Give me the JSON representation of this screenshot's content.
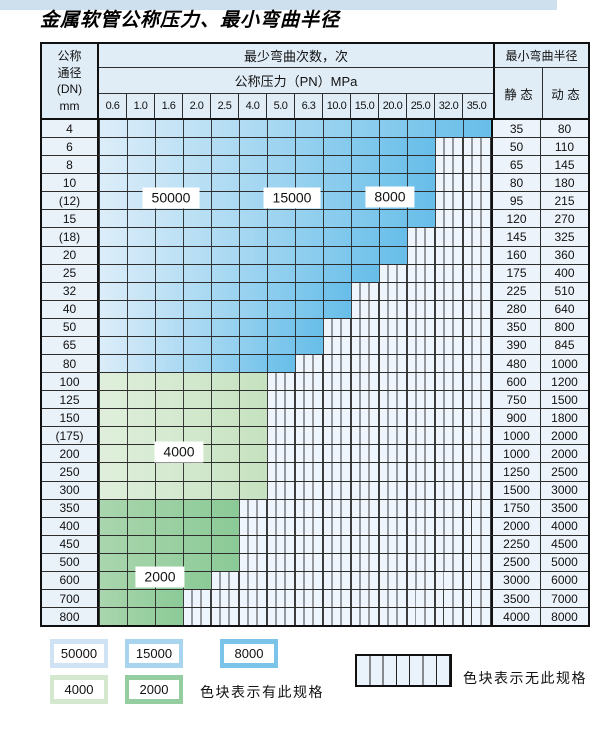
{
  "title": "金属软管公称压力、最小弯曲半径",
  "table": {
    "header": {
      "dn": [
        "公称",
        "通径",
        "(DN)",
        "mm"
      ],
      "bend_cycles": "最少弯曲次数，次",
      "pressure": "公称压力（PN）MPa",
      "pressures": [
        "0.6",
        "1.0",
        "1.6",
        "2.0",
        "2.5",
        "4.0",
        "5.0",
        "6.3",
        "10.0",
        "15.0",
        "20.0",
        "25.0",
        "32.0",
        "35.0"
      ],
      "radius": "最小弯曲半径",
      "static": "静 态",
      "dynamic": "动 态"
    },
    "rows": [
      {
        "dn": "4",
        "colored": 14,
        "max_pn": "35.0",
        "palette": "blue",
        "static": "35",
        "dynamic": "80"
      },
      {
        "dn": "6",
        "colored": 12,
        "max_pn": "25.0",
        "palette": "blue",
        "static": "50",
        "dynamic": "110"
      },
      {
        "dn": "8",
        "colored": 12,
        "max_pn": "25.0",
        "palette": "blue",
        "static": "65",
        "dynamic": "145"
      },
      {
        "dn": "10",
        "colored": 12,
        "max_pn": "25.0",
        "palette": "blue",
        "static": "80",
        "dynamic": "180"
      },
      {
        "dn": "(12)",
        "colored": 12,
        "max_pn": "25.0",
        "palette": "blue",
        "static": "95",
        "dynamic": "215"
      },
      {
        "dn": "15",
        "colored": 12,
        "max_pn": "25.0",
        "palette": "blue",
        "static": "120",
        "dynamic": "270"
      },
      {
        "dn": "(18)",
        "colored": 11,
        "max_pn": "20.0",
        "palette": "blue",
        "static": "145",
        "dynamic": "325"
      },
      {
        "dn": "20",
        "colored": 11,
        "max_pn": "20.0",
        "palette": "blue",
        "static": "160",
        "dynamic": "360"
      },
      {
        "dn": "25",
        "colored": 10,
        "max_pn": "15.0",
        "palette": "blue",
        "static": "175",
        "dynamic": "400"
      },
      {
        "dn": "32",
        "colored": 9,
        "max_pn": "10.0",
        "palette": "blue",
        "static": "225",
        "dynamic": "510"
      },
      {
        "dn": "40",
        "colored": 9,
        "max_pn": "10.0",
        "palette": "blue",
        "static": "280",
        "dynamic": "640"
      },
      {
        "dn": "50",
        "colored": 8,
        "max_pn": "6.3",
        "palette": "blue",
        "static": "350",
        "dynamic": "800"
      },
      {
        "dn": "65",
        "colored": 8,
        "max_pn": "6.3",
        "palette": "blue",
        "static": "390",
        "dynamic": "845"
      },
      {
        "dn": "80",
        "colored": 7,
        "max_pn": "5.0",
        "palette": "blue",
        "static": "480",
        "dynamic": "1000"
      },
      {
        "dn": "100",
        "colored": 6,
        "max_pn": "4.0",
        "palette": "green_light",
        "static": "600",
        "dynamic": "1200"
      },
      {
        "dn": "125",
        "colored": 6,
        "max_pn": "4.0",
        "palette": "green_light",
        "static": "750",
        "dynamic": "1500"
      },
      {
        "dn": "150",
        "colored": 6,
        "max_pn": "4.0",
        "palette": "green_light",
        "static": "900",
        "dynamic": "1800"
      },
      {
        "dn": "(175)",
        "colored": 6,
        "max_pn": "4.0",
        "palette": "green_light",
        "static": "1000",
        "dynamic": "2000"
      },
      {
        "dn": "200",
        "colored": 6,
        "max_pn": "4.0",
        "palette": "green_light",
        "static": "1000",
        "dynamic": "2000"
      },
      {
        "dn": "250",
        "colored": 6,
        "max_pn": "4.0",
        "palette": "green_light",
        "static": "1250",
        "dynamic": "2500"
      },
      {
        "dn": "300",
        "colored": 6,
        "max_pn": "4.0",
        "palette": "green_light",
        "static": "1500",
        "dynamic": "3000"
      },
      {
        "dn": "350",
        "colored": 5,
        "max_pn": "2.5",
        "palette": "green_dark",
        "static": "1750",
        "dynamic": "3500"
      },
      {
        "dn": "400",
        "colored": 5,
        "max_pn": "2.5",
        "palette": "green_dark",
        "static": "2000",
        "dynamic": "4000"
      },
      {
        "dn": "450",
        "colored": 5,
        "max_pn": "2.5",
        "palette": "green_dark",
        "static": "2250",
        "dynamic": "4500"
      },
      {
        "dn": "500",
        "colored": 5,
        "max_pn": "2.5",
        "palette": "green_dark",
        "static": "2500",
        "dynamic": "5000"
      },
      {
        "dn": "600",
        "colored": 4,
        "max_pn": "2.0",
        "palette": "green_dark",
        "static": "3000",
        "dynamic": "6000"
      },
      {
        "dn": "700",
        "colored": 3,
        "max_pn": "1.6",
        "palette": "green_dark",
        "static": "3500",
        "dynamic": "7000"
      },
      {
        "dn": "800",
        "colored": 3,
        "max_pn": "1.6",
        "palette": "green_dark",
        "static": "4000",
        "dynamic": "8000"
      }
    ]
  },
  "zone_labels": [
    "50000",
    "15000",
    "8000",
    "4000",
    "2000"
  ],
  "legend": {
    "items": [
      {
        "label": "50000",
        "color": "#cfe3f4"
      },
      {
        "label": "15000",
        "color": "#a9d4ef"
      },
      {
        "label": "8000",
        "color": "#7cc3e9"
      },
      {
        "label": "4000",
        "color": "#d4e8d0"
      },
      {
        "label": "2000",
        "color": "#94cd9f"
      }
    ],
    "has_spec_text": "色块表示有此规格",
    "no_spec_text": "色块表示无此规格"
  },
  "colors": {
    "palettes": {
      "blue": [
        "#dcedf9",
        "#67bee9"
      ],
      "green_light": [
        "#e0efdc",
        "#c6e2c0"
      ],
      "green_dark": [
        "#aad6ad",
        "#8bca97"
      ]
    },
    "stripe_bg": "#eef5fc",
    "header_bg": "#e0edf7",
    "grid_line": "#2d2d2d"
  }
}
